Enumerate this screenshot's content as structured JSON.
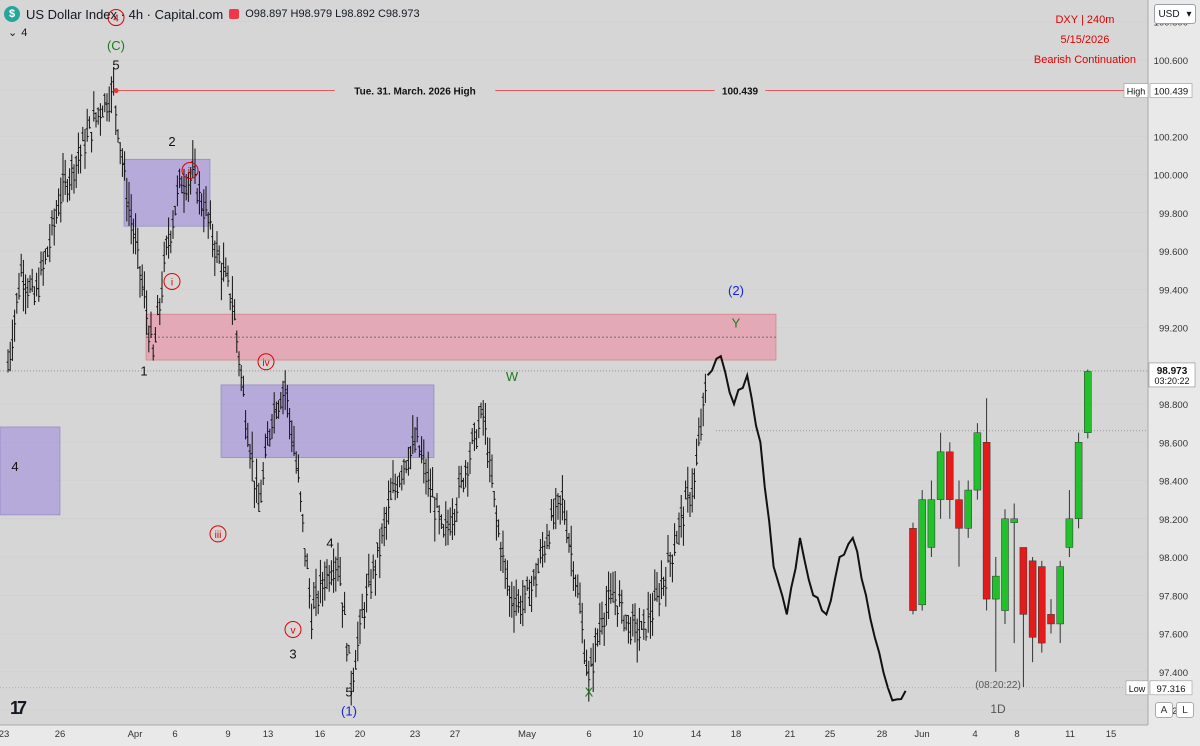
{
  "header": {
    "symbol_badge": "$",
    "title": "US Dollar Index · 4h · Capital.com",
    "ohlc": "O98.897 H98.979 L98.892 C98.973",
    "sub_count": "4"
  },
  "stamp": {
    "line1": "DXY  |  240m",
    "line2": "5/15/2026",
    "line3": "Bearish Continuation"
  },
  "currency_button": "USD",
  "corner_buttons": [
    "A",
    "L"
  ],
  "colors": {
    "background": "#d6d6d6",
    "bull": "#22c02a",
    "bear": "#e31b1b",
    "ob_purple": "#a99bd9",
    "ob_red": "#e79aac",
    "wave_red": "#e00000",
    "wave_green": "#1f7a1f",
    "wave_blue": "#1426d6"
  },
  "chart_data": {
    "type": "line",
    "title": "US Dollar Index · 4h · Capital.com",
    "ylim": [
      97.2,
      100.85
    ],
    "y_ticks": [
      "100.800",
      "100.600",
      "100.439",
      "100.200",
      "100.000",
      "99.800",
      "99.600",
      "99.400",
      "99.200",
      "98.973",
      "98.800",
      "98.600",
      "98.400",
      "98.200",
      "98.000",
      "97.800",
      "97.600",
      "97.400",
      "97.200"
    ],
    "x_ticks": [
      "23",
      "26",
      "Apr",
      "6",
      "9",
      "13",
      "16",
      "20",
      "23",
      "27",
      "May",
      "6",
      "10",
      "14",
      "18",
      "21",
      "25",
      "28",
      "Jun",
      "4",
      "8",
      "11",
      "15"
    ],
    "current_price": "98.973",
    "countdown": "03:20:22",
    "high_label": "High",
    "high_value": "100.439",
    "low_label": "Low",
    "low_value": "97.316",
    "high_annotation": "Tue. 31. March. 2026 High",
    "high_annotation_value": "100.439",
    "daily_panel_label": "1D",
    "daily_countdown": "(08:20:22)",
    "price_path": [
      [
        "23",
        99.0
      ],
      [
        "24",
        99.5
      ],
      [
        "25",
        99.35
      ],
      [
        "26",
        99.6
      ],
      [
        "27",
        99.9
      ],
      [
        "28",
        100.05
      ],
      [
        "29",
        100.2
      ],
      [
        "30",
        100.35
      ],
      [
        "31",
        100.439
      ],
      [
        "Apr 1",
        99.9
      ],
      [
        "Apr 2",
        99.5
      ],
      [
        "Apr 3",
        99.05
      ],
      [
        "Apr 4",
        99.6
      ],
      [
        "Apr 5",
        99.95
      ],
      [
        "Apr 6",
        100.0
      ],
      [
        "Apr 7",
        99.8
      ],
      [
        "Apr 8",
        99.55
      ],
      [
        "Apr 9",
        99.35
      ],
      [
        "Apr 10",
        98.75
      ],
      [
        "Apr 11",
        98.25
      ],
      [
        "Apr 12",
        98.75
      ],
      [
        "Apr 13",
        98.9
      ],
      [
        "Apr 14",
        98.4
      ],
      [
        "Apr 15",
        97.7
      ],
      [
        "Apr 16",
        97.9
      ],
      [
        "Apr 17",
        98.0
      ],
      [
        "Apr 18",
        97.35
      ],
      [
        "Apr 19",
        97.75
      ],
      [
        "Apr 20",
        98.0
      ],
      [
        "Apr 21",
        98.3
      ],
      [
        "Apr 22",
        98.5
      ],
      [
        "Apr 23",
        98.6
      ],
      [
        "Apr 24",
        98.35
      ],
      [
        "Apr 25",
        98.1
      ],
      [
        "Apr 26",
        98.3
      ],
      [
        "Apr 27",
        98.55
      ],
      [
        "Apr 28",
        98.75
      ],
      [
        "Apr 29",
        98.2
      ],
      [
        "Apr 30",
        97.8
      ],
      [
        "May 1",
        97.75
      ],
      [
        "May 2",
        97.9
      ],
      [
        "May 3",
        98.15
      ],
      [
        "May 4",
        98.3
      ],
      [
        "May 5",
        97.9
      ],
      [
        "May 6",
        97.35
      ],
      [
        "May 7",
        97.7
      ],
      [
        "May 8",
        97.8
      ],
      [
        "May 9",
        97.65
      ],
      [
        "May 10",
        97.6
      ],
      [
        "May 11",
        97.75
      ],
      [
        "May 12",
        97.95
      ],
      [
        "May 13",
        98.2
      ],
      [
        "May 14",
        98.4
      ],
      [
        "May 15",
        98.95
      ]
    ],
    "projection": [
      [
        "May 15",
        98.95
      ],
      [
        "May 16",
        99.05
      ],
      [
        "May 17",
        98.8
      ],
      [
        "May 18",
        98.95
      ],
      [
        "May 19",
        98.6
      ],
      [
        "May 20",
        97.95
      ],
      [
        "May 21",
        97.7
      ],
      [
        "May 22",
        98.1
      ],
      [
        "May 23",
        97.8
      ],
      [
        "May 24",
        97.7
      ],
      [
        "May 25",
        98.0
      ],
      [
        "May 26",
        98.1
      ],
      [
        "May 27",
        97.8
      ],
      [
        "May 28",
        97.5
      ],
      [
        "May 29",
        97.25
      ],
      [
        "May 30",
        97.3
      ]
    ],
    "daily_candles": [
      {
        "o": 98.15,
        "h": 98.18,
        "l": 97.7,
        "c": 97.72,
        "color": "bear"
      },
      {
        "o": 97.75,
        "h": 98.35,
        "l": 97.72,
        "c": 98.3,
        "color": "bull"
      },
      {
        "o": 98.05,
        "h": 98.4,
        "l": 98.0,
        "c": 98.3,
        "color": "bull"
      },
      {
        "o": 98.3,
        "h": 98.65,
        "l": 98.2,
        "c": 98.55,
        "color": "bull"
      },
      {
        "o": 98.55,
        "h": 98.6,
        "l": 98.2,
        "c": 98.3,
        "color": "bear"
      },
      {
        "o": 98.3,
        "h": 98.4,
        "l": 97.95,
        "c": 98.15,
        "color": "bear"
      },
      {
        "o": 98.15,
        "h": 98.4,
        "l": 98.1,
        "c": 98.35,
        "color": "bull"
      },
      {
        "o": 98.35,
        "h": 98.7,
        "l": 98.3,
        "c": 98.65,
        "color": "bull"
      },
      {
        "o": 98.6,
        "h": 98.83,
        "l": 97.72,
        "c": 97.78,
        "color": "bear"
      },
      {
        "o": 97.78,
        "h": 98.0,
        "l": 97.4,
        "c": 97.9,
        "color": "bull"
      },
      {
        "o": 97.72,
        "h": 98.25,
        "l": 97.65,
        "c": 98.2,
        "color": "bull"
      },
      {
        "o": 98.2,
        "h": 98.28,
        "l": 97.55,
        "c": 98.18,
        "color": "bull"
      },
      {
        "o": 98.05,
        "h": 98.05,
        "l": 97.32,
        "c": 97.7,
        "color": "bear"
      },
      {
        "o": 97.98,
        "h": 98.0,
        "l": 97.45,
        "c": 97.58,
        "color": "bear"
      },
      {
        "o": 97.95,
        "h": 97.98,
        "l": 97.5,
        "c": 97.55,
        "color": "bear"
      },
      {
        "o": 97.7,
        "h": 97.78,
        "l": 97.6,
        "c": 97.65,
        "color": "bear"
      },
      {
        "o": 97.65,
        "h": 97.98,
        "l": 97.55,
        "c": 97.95,
        "color": "bull"
      },
      {
        "o": 98.05,
        "h": 98.35,
        "l": 98.0,
        "c": 98.2,
        "color": "bull"
      },
      {
        "o": 98.2,
        "h": 98.65,
        "l": 98.15,
        "c": 98.6,
        "color": "bull"
      },
      {
        "o": 98.65,
        "h": 98.98,
        "l": 98.62,
        "c": 98.97,
        "color": "bull"
      }
    ],
    "wave_labels": [
      {
        "text": "4",
        "color": "red",
        "circle": true,
        "x": "Mar 31",
        "y": 100.8
      },
      {
        "text": "(C)",
        "color": "green",
        "circle": false,
        "x": "Mar 31",
        "y": 100.65
      },
      {
        "text": "5",
        "color": "black",
        "circle": false,
        "x": "Mar 31",
        "y": 100.55
      },
      {
        "text": "2",
        "color": "black",
        "circle": false,
        "x": "Apr 5",
        "y": 100.15
      },
      {
        "text": "ii",
        "color": "red",
        "circle": true,
        "x": "Apr 6",
        "y": 100.0
      },
      {
        "text": "i",
        "color": "red",
        "circle": true,
        "x": "Apr 5",
        "y": 99.42
      },
      {
        "text": "1",
        "color": "black",
        "circle": false,
        "x": "Apr 2",
        "y": 98.95
      },
      {
        "text": "iv",
        "color": "red",
        "circle": true,
        "x": "Apr 13",
        "y": 99.0
      },
      {
        "text": "iii",
        "color": "red",
        "circle": true,
        "x": "Apr 10",
        "y": 98.1
      },
      {
        "text": "4",
        "color": "black",
        "circle": false,
        "x": "Apr 17",
        "y": 98.05
      },
      {
        "text": "v",
        "color": "red",
        "circle": true,
        "x": "Apr 15",
        "y": 97.6
      },
      {
        "text": "3",
        "color": "black",
        "circle": false,
        "x": "Apr 15",
        "y": 97.47
      },
      {
        "text": "5",
        "color": "black",
        "circle": false,
        "x": "Apr 18",
        "y": 97.27
      },
      {
        "text": "(1)",
        "color": "blue",
        "circle": false,
        "x": "Apr 18",
        "y": 97.17
      },
      {
        "text": "4",
        "color": "black",
        "circle": false,
        "x": "Mar 23",
        "y": 98.45
      },
      {
        "text": "W",
        "color": "green",
        "circle": false,
        "x": "Apr 28",
        "y": 98.92
      },
      {
        "text": "X",
        "color": "green",
        "circle": false,
        "x": "May 6",
        "y": 97.27
      },
      {
        "text": "(2)",
        "color": "blue",
        "circle": false,
        "x": "May 17",
        "y": 99.37
      },
      {
        "text": "Y",
        "color": "green",
        "circle": false,
        "x": "May 17",
        "y": 99.2
      }
    ],
    "zones": [
      {
        "kind": "purple",
        "x_from": "Apr 4",
        "x_to": "Apr 8",
        "y_from": 99.73,
        "y_to": 100.08
      },
      {
        "kind": "red",
        "x_from": "Apr 2",
        "x_to": "May 18",
        "y_from": 99.03,
        "y_to": 99.27
      },
      {
        "kind": "purple",
        "x_from": "Apr 9",
        "x_to": "Apr 24",
        "y_from": 98.52,
        "y_to": 98.9
      },
      {
        "kind": "purple",
        "x_from": "Mar 22",
        "x_to": "Mar 24",
        "y_from": 98.22,
        "y_to": 98.68
      }
    ]
  }
}
